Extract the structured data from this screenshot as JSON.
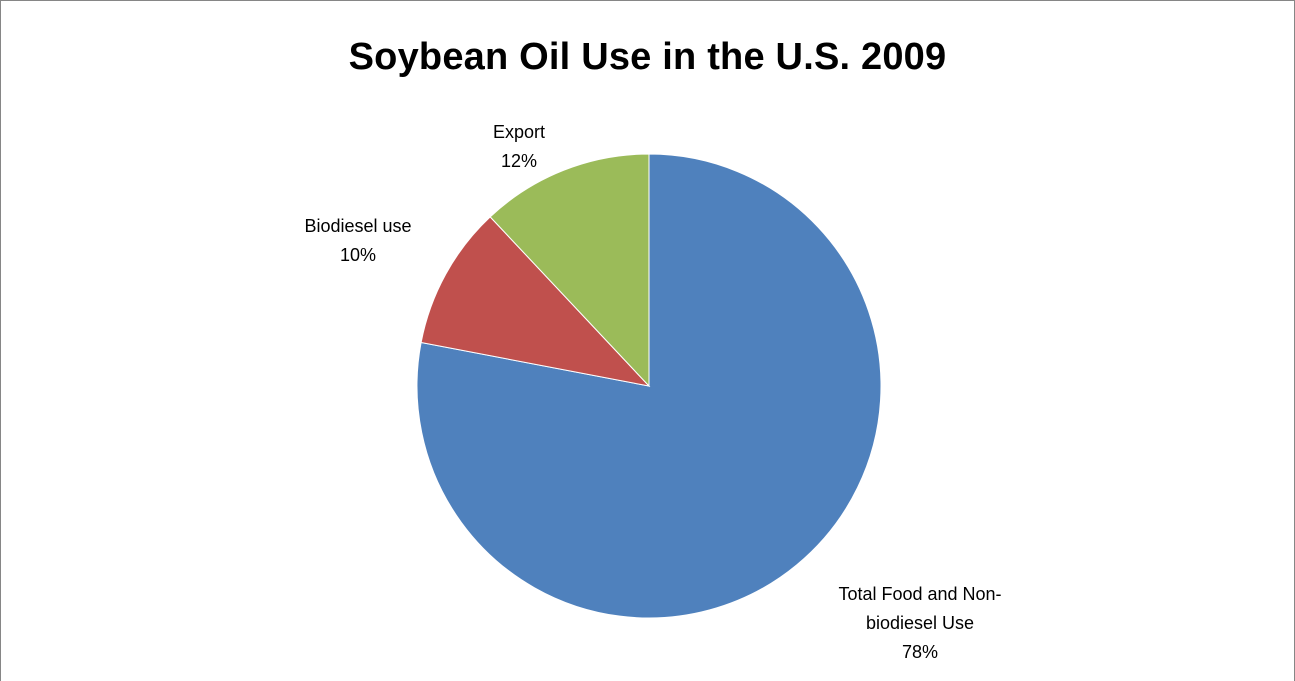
{
  "chart_data": {
    "type": "pie",
    "title": "Soybean Oil Use in the U.S. 2009",
    "slices": [
      {
        "name": "Total Food and Non-biodiesel Use",
        "name_lines": [
          "Total Food and Non-",
          "biodiesel Use"
        ],
        "value": 78,
        "label": "78%",
        "color": "#4F81BD"
      },
      {
        "name": "Biodiesel use",
        "name_lines": [
          "Biodiesel use"
        ],
        "value": 10,
        "label": "10%",
        "color": "#C0504D"
      },
      {
        "name": "Export",
        "name_lines": [
          "Export"
        ],
        "value": 12,
        "label": "12%",
        "color": "#9BBB59"
      }
    ],
    "start_angle": "12 o'clock",
    "direction": "clockwise",
    "legend": "none",
    "data_labels": "outside"
  }
}
